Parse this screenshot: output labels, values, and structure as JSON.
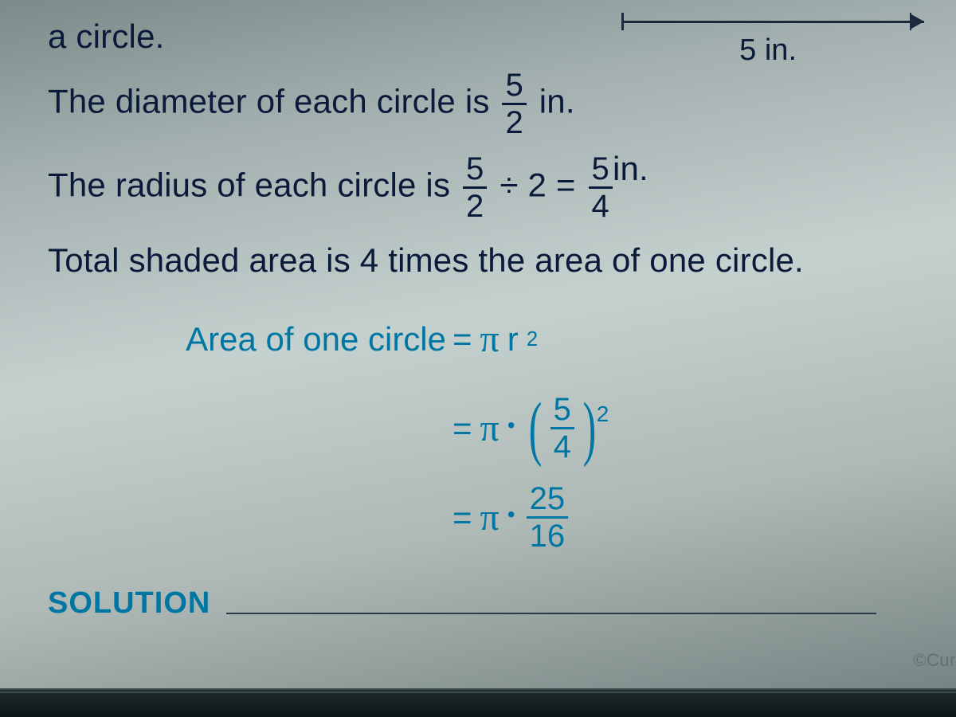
{
  "dimension_arrow": {
    "label": "5 in."
  },
  "lines": {
    "l0": "a circle.",
    "l1_pre": "The diameter of each circle is ",
    "l1_frac_num": "5",
    "l1_frac_den": "2",
    "l1_post": " in.",
    "l2_pre": "The radius of each circle is ",
    "l2_fracA_num": "5",
    "l2_fracA_den": "2",
    "l2_mid": " ÷ 2 = ",
    "l2_fracB_num": "5",
    "l2_fracB_den": "4",
    "l2_post_unit": "in.",
    "l3": "Total shaded area is 4 times the area of one circle."
  },
  "equation": {
    "left_label": "Area of one circle",
    "eq_sym": "=",
    "pi": "π",
    "r_squared": "r",
    "sup2": "2",
    "dot": "•",
    "row2_frac_num": "5",
    "row2_frac_den": "4",
    "row3_frac_num": "25",
    "row3_frac_den": "16"
  },
  "solution_label": "SOLUTION",
  "watermark": "©Cur",
  "colors": {
    "text_dark": "#0a1a3a",
    "accent": "#0076a3",
    "rule": "#2a3a4a"
  }
}
